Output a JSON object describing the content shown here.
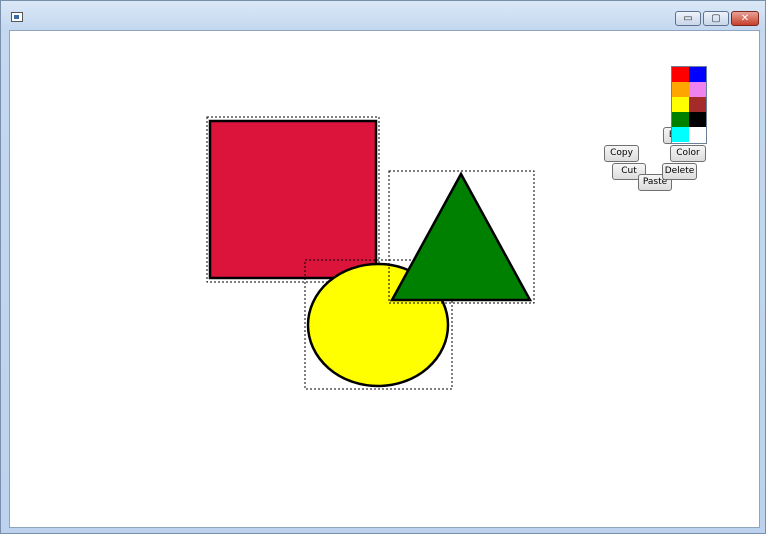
{
  "window": {
    "caption_buttons": {
      "minimize": "▭",
      "maximize": "▢",
      "close": "✕"
    }
  },
  "canvas": {
    "shapes": [
      {
        "kind": "square",
        "fill": "#dc143c",
        "stroke": "#000000"
      },
      {
        "kind": "ellipse",
        "fill": "#ffff00",
        "stroke": "#000000"
      },
      {
        "kind": "triangle",
        "fill": "#008000",
        "stroke": "#000000"
      }
    ]
  },
  "context_menu": {
    "copy": "Copy",
    "cut": "Cut",
    "paste": "Paste",
    "delete": "Delete",
    "color": "Color",
    "b_partial": "B"
  },
  "palette": {
    "colors": [
      {
        "name": "red",
        "hex": "#ff0000"
      },
      {
        "name": "blue",
        "hex": "#0000ff"
      },
      {
        "name": "orange",
        "hex": "#ffa500"
      },
      {
        "name": "violet",
        "hex": "#ee82ee"
      },
      {
        "name": "yellow",
        "hex": "#ffff00"
      },
      {
        "name": "brown",
        "hex": "#a52a2a"
      },
      {
        "name": "green",
        "hex": "#008000"
      },
      {
        "name": "black",
        "hex": "#000000"
      },
      {
        "name": "cyan",
        "hex": "#00ffff"
      },
      {
        "name": "white",
        "hex": "#ffffff"
      }
    ]
  }
}
